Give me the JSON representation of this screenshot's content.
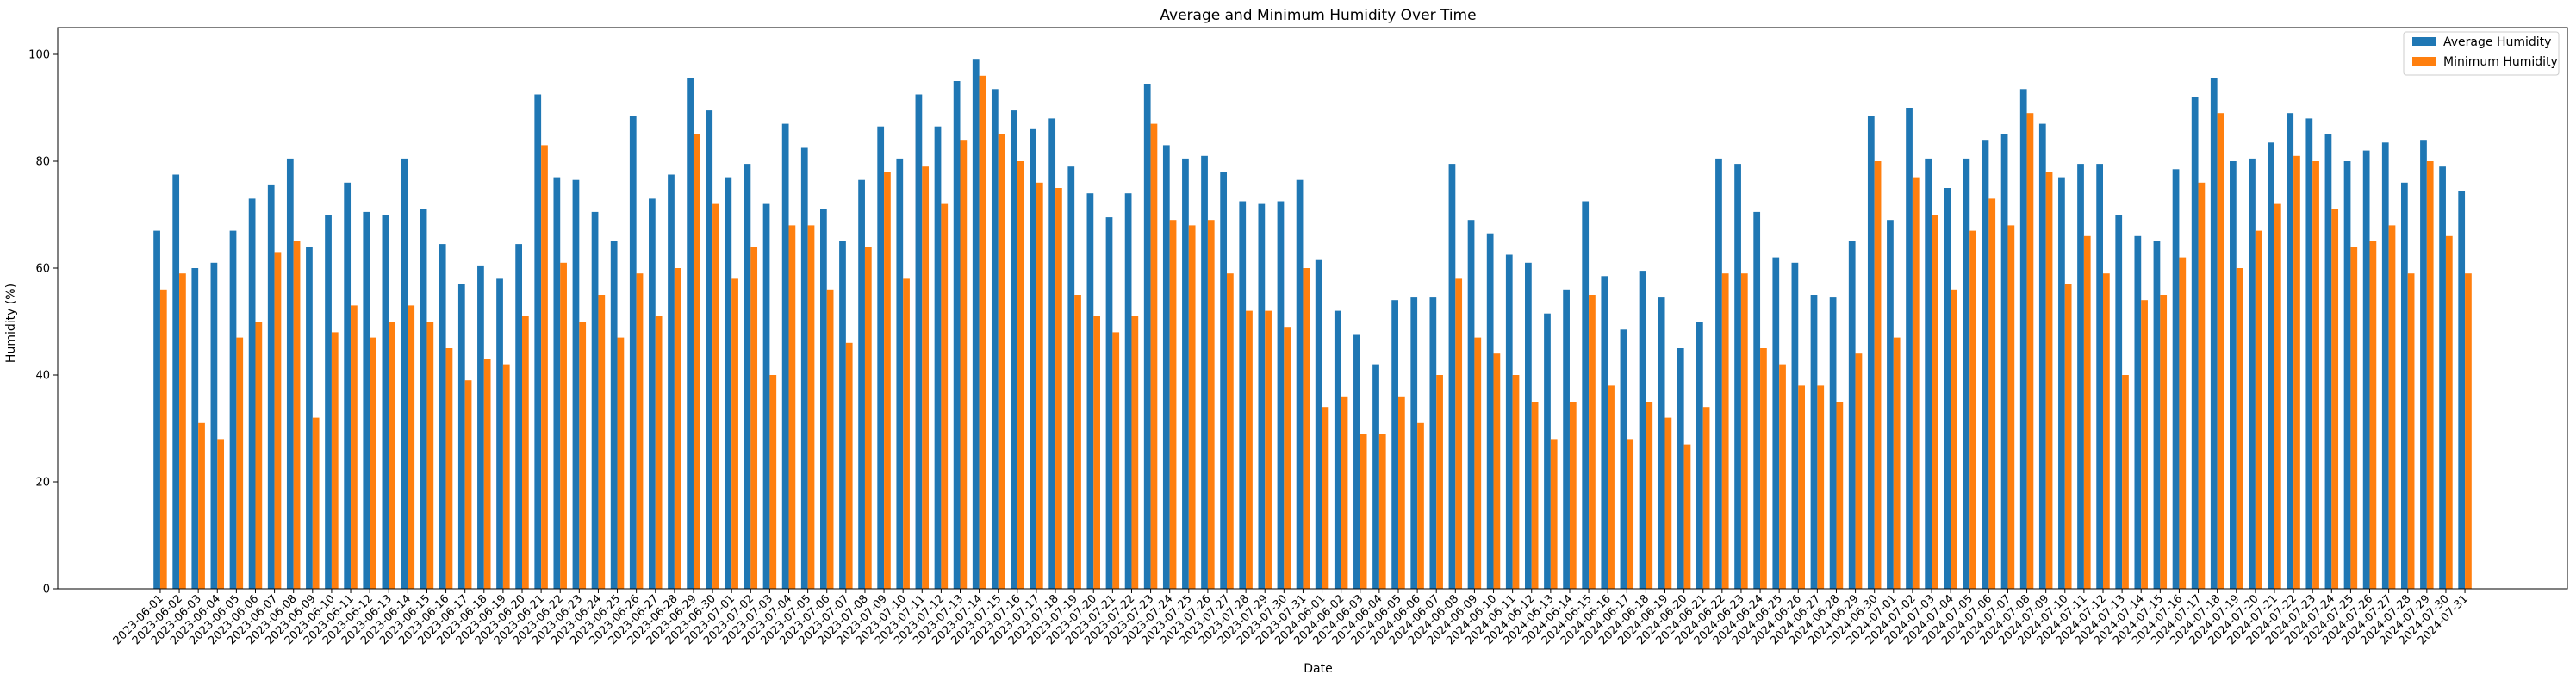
{
  "chart_data": {
    "type": "bar",
    "title": "Average and Minimum Humidity Over Time",
    "xlabel": "Date",
    "ylabel": "Humidity (%)",
    "ylim": [
      0,
      105
    ],
    "yticks": [
      0,
      20,
      40,
      60,
      80,
      100
    ],
    "grid": false,
    "legend_position": "top-right",
    "colors": {
      "avg": "#1f77b4",
      "min": "#ff7f0e"
    },
    "categories": [
      "2023-06-01",
      "2023-06-02",
      "2023-06-03",
      "2023-06-04",
      "2023-06-05",
      "2023-06-06",
      "2023-06-07",
      "2023-06-08",
      "2023-06-09",
      "2023-06-10",
      "2023-06-11",
      "2023-06-12",
      "2023-06-13",
      "2023-06-14",
      "2023-06-15",
      "2023-06-16",
      "2023-06-17",
      "2023-06-18",
      "2023-06-19",
      "2023-06-20",
      "2023-06-21",
      "2023-06-22",
      "2023-06-23",
      "2023-06-24",
      "2023-06-25",
      "2023-06-26",
      "2023-06-27",
      "2023-06-28",
      "2023-06-29",
      "2023-06-30",
      "2023-07-01",
      "2023-07-02",
      "2023-07-03",
      "2023-07-04",
      "2023-07-05",
      "2023-07-06",
      "2023-07-07",
      "2023-07-08",
      "2023-07-09",
      "2023-07-10",
      "2023-07-11",
      "2023-07-12",
      "2023-07-13",
      "2023-07-14",
      "2023-07-15",
      "2023-07-16",
      "2023-07-17",
      "2023-07-18",
      "2023-07-19",
      "2023-07-20",
      "2023-07-21",
      "2023-07-22",
      "2023-07-23",
      "2023-07-24",
      "2023-07-25",
      "2023-07-26",
      "2023-07-27",
      "2023-07-28",
      "2023-07-29",
      "2023-07-30",
      "2023-07-31",
      "2024-06-01",
      "2024-06-02",
      "2024-06-03",
      "2024-06-04",
      "2024-06-05",
      "2024-06-06",
      "2024-06-07",
      "2024-06-08",
      "2024-06-09",
      "2024-06-10",
      "2024-06-11",
      "2024-06-12",
      "2024-06-13",
      "2024-06-14",
      "2024-06-15",
      "2024-06-16",
      "2024-06-17",
      "2024-06-18",
      "2024-06-19",
      "2024-06-20",
      "2024-06-21",
      "2024-06-22",
      "2024-06-23",
      "2024-06-24",
      "2024-06-25",
      "2024-06-26",
      "2024-06-27",
      "2024-06-28",
      "2024-06-29",
      "2024-06-30",
      "2024-07-01",
      "2024-07-02",
      "2024-07-03",
      "2024-07-04",
      "2024-07-05",
      "2024-07-06",
      "2024-07-07",
      "2024-07-08",
      "2024-07-09",
      "2024-07-10",
      "2024-07-11",
      "2024-07-12",
      "2024-07-13",
      "2024-07-14",
      "2024-07-15",
      "2024-07-16",
      "2024-07-17",
      "2024-07-18",
      "2024-07-19",
      "2024-07-20",
      "2024-07-21",
      "2024-07-22",
      "2024-07-23",
      "2024-07-24",
      "2024-07-25",
      "2024-07-26",
      "2024-07-27",
      "2024-07-28",
      "2024-07-29",
      "2024-07-30",
      "2024-07-31"
    ],
    "series": [
      {
        "name": "Average Humidity",
        "values": [
          67,
          77.5,
          60,
          61,
          67,
          73,
          75.5,
          80.5,
          64,
          70,
          76,
          70.5,
          70,
          80.5,
          71,
          64.5,
          57,
          60.5,
          58,
          64.5,
          92.5,
          77,
          76.5,
          70.5,
          65,
          88.5,
          73,
          77.5,
          95.5,
          89.5,
          77,
          79.5,
          72,
          87,
          82.5,
          71,
          65,
          76.5,
          86.5,
          80.5,
          92.5,
          86.5,
          95,
          99,
          93.5,
          89.5,
          86,
          88,
          79,
          74,
          69.5,
          74,
          94.5,
          83,
          80.5,
          81,
          78,
          72.5,
          72,
          72.5,
          76.5,
          61.5,
          52,
          47.5,
          42,
          54,
          54.5,
          54.5,
          79.5,
          69,
          66.5,
          62.5,
          61,
          51.5,
          56,
          72.5,
          58.5,
          48.5,
          59.5,
          54.5,
          45,
          50,
          80.5,
          79.5,
          70.5,
          62,
          61,
          55,
          54.5,
          65,
          88.5,
          69,
          90,
          80.5,
          75,
          80.5,
          84,
          85,
          93.5,
          87,
          77,
          79.5,
          79.5,
          70,
          66,
          65,
          78.5,
          92,
          95.5,
          80,
          80.5,
          83.5,
          89,
          88,
          85,
          80,
          82,
          83.5,
          76,
          84,
          79,
          74.5
        ]
      },
      {
        "name": "Minimum Humidity",
        "values": [
          56,
          59,
          31,
          28,
          47,
          50,
          63,
          65,
          32,
          48,
          53,
          47,
          50,
          53,
          50,
          45,
          39,
          43,
          42,
          51,
          83,
          61,
          50,
          55,
          47,
          59,
          51,
          60,
          85,
          72,
          58,
          64,
          40,
          68,
          68,
          56,
          46,
          64,
          78,
          58,
          79,
          72,
          84,
          96,
          85,
          80,
          76,
          75,
          55,
          51,
          48,
          51,
          87,
          69,
          68,
          69,
          59,
          52,
          52,
          49,
          60,
          34,
          36,
          29,
          29,
          36,
          31,
          40,
          58,
          47,
          44,
          40,
          35,
          28,
          35,
          55,
          38,
          28,
          35,
          32,
          27,
          34,
          59,
          59,
          45,
          42,
          38,
          38,
          35,
          44,
          80,
          47,
          77,
          70,
          56,
          67,
          73,
          68,
          89,
          78,
          57,
          66,
          59,
          40,
          54,
          55,
          62,
          76,
          89,
          60,
          67,
          72,
          81,
          80,
          71,
          64,
          65,
          68,
          59,
          80,
          66,
          59
        ]
      }
    ]
  }
}
